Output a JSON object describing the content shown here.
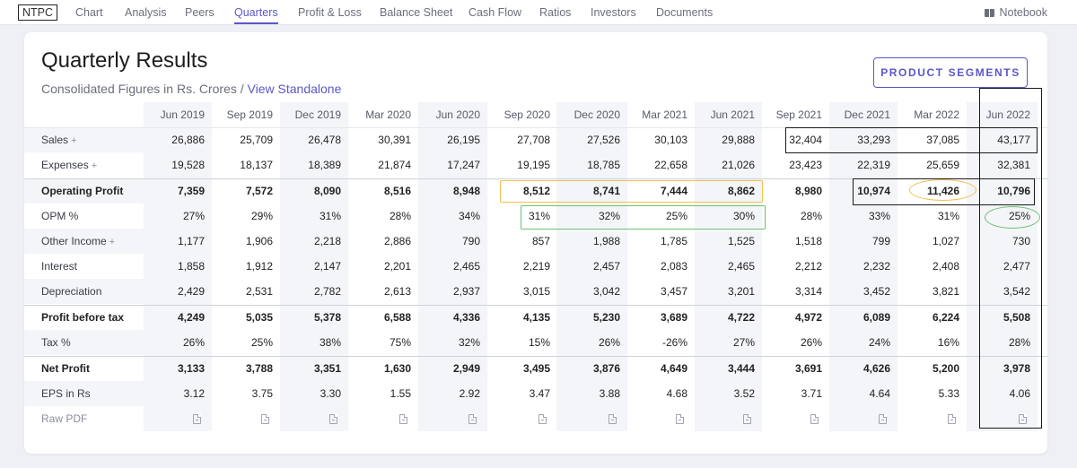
{
  "nav": {
    "brand": "NTPC",
    "items": [
      "Chart",
      "Analysis",
      "Peers",
      "Quarters",
      "Profit & Loss",
      "Balance Sheet",
      "Cash Flow",
      "Ratios",
      "Investors",
      "Documents"
    ],
    "active": "Quarters",
    "notebook": "Notebook"
  },
  "section": {
    "title": "Quarterly Results",
    "subtitle": "Consolidated Figures in Rs. Crores",
    "separator": " / ",
    "link": "View Standalone",
    "segments_button": "PRODUCT SEGMENTS"
  },
  "table": {
    "columns": [
      "Jun 2019",
      "Sep 2019",
      "Dec 2019",
      "Mar 2020",
      "Jun 2020",
      "Sep 2020",
      "Dec 2020",
      "Mar 2021",
      "Jun 2021",
      "Sep 2021",
      "Dec 2021",
      "Mar 2022",
      "Jun 2022"
    ],
    "rows": [
      {
        "label": "Sales",
        "plus": "+",
        "values": [
          "26,886",
          "25,709",
          "26,478",
          "30,391",
          "26,195",
          "27,708",
          "27,526",
          "30,103",
          "29,888",
          "32,404",
          "33,293",
          "37,085",
          "43,177"
        ]
      },
      {
        "label": "Expenses",
        "plus": "+",
        "values": [
          "19,528",
          "18,137",
          "18,389",
          "21,874",
          "17,247",
          "19,195",
          "18,785",
          "22,658",
          "21,026",
          "23,423",
          "22,319",
          "25,659",
          "32,381"
        ]
      },
      {
        "label": "Operating Profit",
        "bold": true,
        "values": [
          "7,359",
          "7,572",
          "8,090",
          "8,516",
          "8,948",
          "8,512",
          "8,741",
          "7,444",
          "8,862",
          "8,980",
          "10,974",
          "11,426",
          "10,796"
        ]
      },
      {
        "label": "OPM %",
        "values": [
          "27%",
          "29%",
          "31%",
          "28%",
          "34%",
          "31%",
          "32%",
          "25%",
          "30%",
          "28%",
          "33%",
          "31%",
          "25%"
        ]
      },
      {
        "label": "Other Income",
        "plus": "+",
        "values": [
          "1,177",
          "1,906",
          "2,218",
          "2,886",
          "790",
          "857",
          "1,988",
          "1,785",
          "1,525",
          "1,518",
          "799",
          "1,027",
          "730"
        ]
      },
      {
        "label": "Interest",
        "values": [
          "1,858",
          "1,912",
          "2,147",
          "2,201",
          "2,465",
          "2,219",
          "2,457",
          "2,083",
          "2,465",
          "2,212",
          "2,232",
          "2,408",
          "2,477"
        ]
      },
      {
        "label": "Depreciation",
        "values": [
          "2,429",
          "2,531",
          "2,782",
          "2,613",
          "2,937",
          "3,015",
          "3,042",
          "3,457",
          "3,201",
          "3,314",
          "3,452",
          "3,821",
          "3,542"
        ]
      },
      {
        "label": "Profit before tax",
        "bold": true,
        "values": [
          "4,249",
          "5,035",
          "5,378",
          "6,588",
          "4,336",
          "4,135",
          "5,230",
          "3,689",
          "4,722",
          "4,972",
          "6,089",
          "6,224",
          "5,508"
        ]
      },
      {
        "label": "Tax %",
        "values": [
          "26%",
          "25%",
          "38%",
          "75%",
          "32%",
          "15%",
          "26%",
          "-26%",
          "27%",
          "26%",
          "24%",
          "16%",
          "28%"
        ]
      },
      {
        "label": "Net Profit",
        "bold": true,
        "values": [
          "3,133",
          "3,788",
          "3,351",
          "1,630",
          "2,949",
          "3,495",
          "3,876",
          "4,649",
          "3,444",
          "3,691",
          "4,626",
          "5,200",
          "3,978"
        ]
      },
      {
        "label": "EPS in Rs",
        "values": [
          "3.12",
          "3.75",
          "3.30",
          "1.55",
          "2.92",
          "3.47",
          "3.88",
          "4.68",
          "3.52",
          "3.71",
          "4.64",
          "5.33",
          "4.06"
        ]
      }
    ],
    "raw_pdf_label": "Raw PDF",
    "pdf_icon": "pdf-file-icon"
  },
  "colors": {
    "accent": "#5c57c7",
    "stripe": "#f4f5f9",
    "annotation_black": "#1a1a1a",
    "annotation_orange": "#f3c04a",
    "annotation_green": "#6cc36f"
  }
}
